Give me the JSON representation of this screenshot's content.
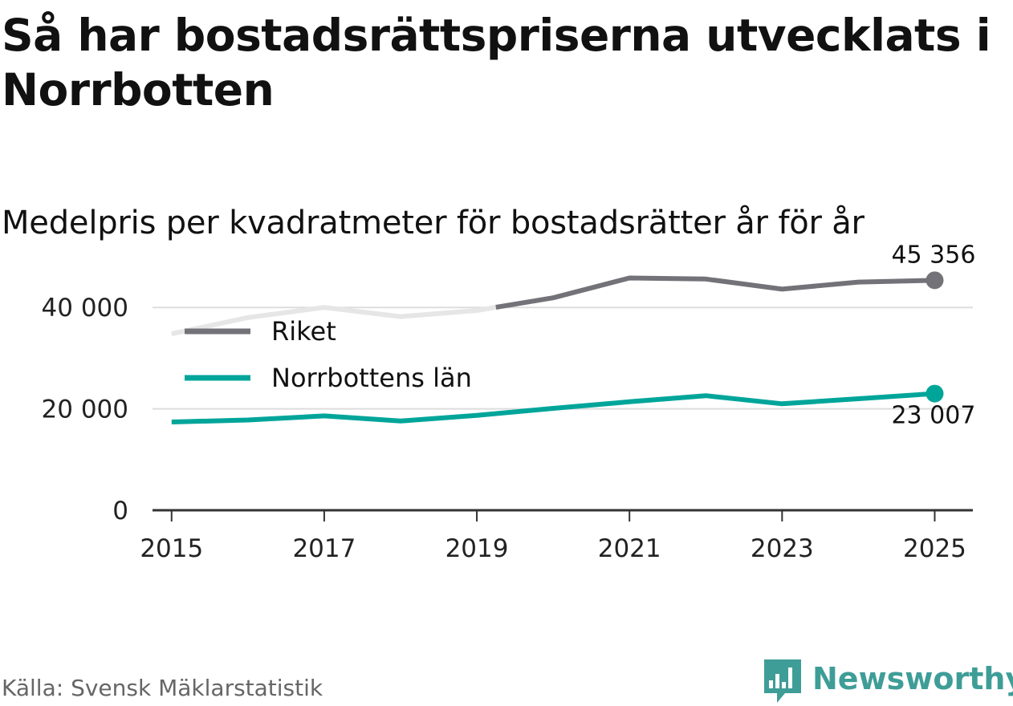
{
  "title": "Så har bostadsrättspriserna utvecklats i Norrbotten",
  "subtitle": "Medelpris per kvadratmeter för bostadsrätter år för år",
  "source": "Källa: Svensk Mäklarstatistik",
  "brand": "Newsworthy",
  "colors": {
    "riket": "#737278",
    "riket_faded": "#e6e6e6",
    "norrbotten": "#00a59a",
    "grid": "#dddddd",
    "axis": "#333333",
    "brand": "#3f9d97"
  },
  "chart_data": {
    "type": "line",
    "x": [
      2015,
      2016,
      2017,
      2018,
      2019,
      2020,
      2021,
      2022,
      2023,
      2024,
      2025
    ],
    "series": [
      {
        "name": "Riket",
        "key": "riket",
        "values": [
          34800,
          38000,
          40000,
          38200,
          39400,
          41900,
          45800,
          45600,
          43600,
          45000,
          45356
        ],
        "faded_until_x": 2019.25
      },
      {
        "name": "Norrbottens län",
        "key": "norrbotten",
        "values": [
          17400,
          17800,
          18600,
          17600,
          18700,
          20100,
          21400,
          22600,
          21000,
          22000,
          23007
        ]
      }
    ],
    "end_labels": [
      {
        "series": "riket",
        "text": "45 356",
        "position": "above"
      },
      {
        "series": "norrbotten",
        "text": "23 007",
        "position": "below"
      }
    ],
    "y_ticks": [
      0,
      20000,
      40000
    ],
    "y_tick_labels": [
      "0",
      "20 000",
      "40 000"
    ],
    "x_ticks": [
      2015,
      2017,
      2019,
      2021,
      2023,
      2025
    ],
    "x_tick_labels": [
      "2015",
      "2017",
      "2019",
      "2021",
      "2023",
      "2025"
    ],
    "xlim": [
      2014.75,
      2025.5
    ],
    "ylim": [
      0,
      50000
    ],
    "legend": [
      {
        "label": "Riket",
        "series": "riket"
      },
      {
        "label": "Norrbottens län",
        "series": "norrbotten"
      }
    ],
    "legend_position": "top-left",
    "grid": true
  }
}
